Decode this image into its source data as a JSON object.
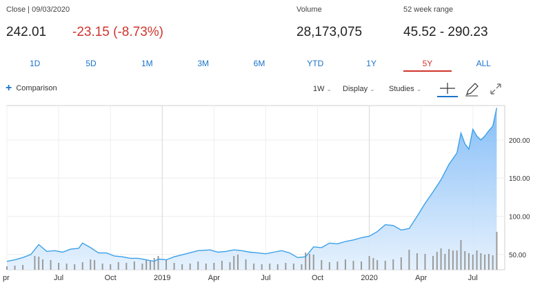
{
  "quote": {
    "close_label": "Close | 09/03/2020",
    "close_value": "242.01",
    "change": "-23.15 (-8.73%)",
    "volume_label": "Volume",
    "volume_value": "28,173,075",
    "range_label": "52 week range",
    "range_value": "45.52 - 290.23"
  },
  "ranges": [
    "1D",
    "5D",
    "1M",
    "3M",
    "6M",
    "YTD",
    "1Y",
    "5Y",
    "ALL"
  ],
  "active_range": "5Y",
  "toolbar": {
    "comparison_label": "Comparison",
    "interval_label": "1W",
    "display_label": "Display",
    "studies_label": "Studies",
    "icons": [
      "plus-icon",
      "crosshair-icon",
      "draw-pencil-icon",
      "expand-icon"
    ]
  },
  "colors": {
    "accent": "#1a73c9",
    "negative": "#d0342c",
    "line": "#3aa0e8",
    "fill": "#a9d2fb",
    "volume": "#9a9a9a"
  },
  "chart_data": {
    "type": "area",
    "ylim": [
      30,
      245
    ],
    "y_ticks": [
      "50.00",
      "100.00",
      "150.00",
      "200.00"
    ],
    "y_tick_values": [
      50,
      100,
      150,
      200
    ],
    "x_ticks": [
      {
        "label": "pr",
        "pos": 0
      },
      {
        "label": "Jul",
        "pos": 13
      },
      {
        "label": "Oct",
        "pos": 26
      },
      {
        "label": "2019",
        "pos": 39
      },
      {
        "label": "Apr",
        "pos": 52
      },
      {
        "label": "Jul",
        "pos": 65
      },
      {
        "label": "Oct",
        "pos": 78
      },
      {
        "label": "2020",
        "pos": 91
      },
      {
        "label": "Apr",
        "pos": 104
      },
      {
        "label": "Jul",
        "pos": 117
      }
    ],
    "x_count": 126,
    "grid": true,
    "key_points": [
      [
        0,
        41
      ],
      [
        2,
        43
      ],
      [
        4,
        46
      ],
      [
        6,
        50
      ],
      [
        8,
        63
      ],
      [
        10,
        54
      ],
      [
        12,
        55
      ],
      [
        14,
        53
      ],
      [
        16,
        57
      ],
      [
        18,
        58
      ],
      [
        19,
        65
      ],
      [
        21,
        59
      ],
      [
        23,
        52
      ],
      [
        25,
        52
      ],
      [
        27,
        48
      ],
      [
        29,
        47
      ],
      [
        31,
        45
      ],
      [
        33,
        45
      ],
      [
        35,
        43
      ],
      [
        37,
        41
      ],
      [
        38,
        44
      ],
      [
        40,
        43
      ],
      [
        42,
        47
      ],
      [
        45,
        51
      ],
      [
        48,
        55
      ],
      [
        51,
        56
      ],
      [
        53,
        53
      ],
      [
        55,
        54
      ],
      [
        57,
        56
      ],
      [
        59,
        55
      ],
      [
        61,
        53
      ],
      [
        63,
        52
      ],
      [
        65,
        51
      ],
      [
        67,
        53
      ],
      [
        69,
        55
      ],
      [
        71,
        52
      ],
      [
        73,
        46
      ],
      [
        75,
        47
      ],
      [
        77,
        60
      ],
      [
        79,
        59
      ],
      [
        81,
        65
      ],
      [
        83,
        64
      ],
      [
        85,
        67
      ],
      [
        87,
        69
      ],
      [
        89,
        72
      ],
      [
        91,
        74
      ],
      [
        93,
        80
      ],
      [
        95,
        89
      ],
      [
        97,
        88
      ],
      [
        99,
        82
      ],
      [
        101,
        84
      ],
      [
        103,
        100
      ],
      [
        105,
        117
      ],
      [
        107,
        132
      ],
      [
        109,
        148
      ],
      [
        111,
        168
      ],
      [
        113,
        183
      ],
      [
        114,
        209
      ],
      [
        115,
        195
      ],
      [
        116,
        188
      ],
      [
        117,
        214
      ],
      [
        118,
        205
      ],
      [
        119,
        200
      ],
      [
        120,
        205
      ],
      [
        121,
        212
      ],
      [
        122,
        218
      ],
      [
        123,
        242
      ]
    ],
    "volume_bars": [
      [
        0,
        10
      ],
      [
        2,
        12
      ],
      [
        4,
        14
      ],
      [
        7,
        40
      ],
      [
        8,
        38
      ],
      [
        9,
        30
      ],
      [
        11,
        28
      ],
      [
        13,
        20
      ],
      [
        15,
        18
      ],
      [
        17,
        16
      ],
      [
        19,
        22
      ],
      [
        21,
        30
      ],
      [
        22,
        28
      ],
      [
        24,
        18
      ],
      [
        26,
        16
      ],
      [
        28,
        22
      ],
      [
        30,
        20
      ],
      [
        32,
        24
      ],
      [
        34,
        18
      ],
      [
        35,
        30
      ],
      [
        36,
        26
      ],
      [
        37,
        34
      ],
      [
        38,
        40
      ],
      [
        40,
        30
      ],
      [
        42,
        20
      ],
      [
        44,
        16
      ],
      [
        46,
        18
      ],
      [
        48,
        24
      ],
      [
        50,
        18
      ],
      [
        52,
        20
      ],
      [
        54,
        26
      ],
      [
        56,
        22
      ],
      [
        57,
        40
      ],
      [
        58,
        44
      ],
      [
        60,
        30
      ],
      [
        62,
        18
      ],
      [
        64,
        16
      ],
      [
        66,
        18
      ],
      [
        68,
        16
      ],
      [
        70,
        20
      ],
      [
        72,
        18
      ],
      [
        74,
        16
      ],
      [
        75,
        50
      ],
      [
        76,
        46
      ],
      [
        77,
        44
      ],
      [
        79,
        28
      ],
      [
        81,
        22
      ],
      [
        83,
        24
      ],
      [
        85,
        30
      ],
      [
        87,
        26
      ],
      [
        89,
        24
      ],
      [
        91,
        40
      ],
      [
        92,
        34
      ],
      [
        93,
        28
      ],
      [
        95,
        26
      ],
      [
        97,
        30
      ],
      [
        99,
        36
      ],
      [
        101,
        58
      ],
      [
        103,
        48
      ],
      [
        105,
        46
      ],
      [
        107,
        40
      ],
      [
        108,
        52
      ],
      [
        109,
        62
      ],
      [
        110,
        46
      ],
      [
        111,
        60
      ],
      [
        112,
        56
      ],
      [
        113,
        56
      ],
      [
        114,
        86
      ],
      [
        115,
        54
      ],
      [
        116,
        48
      ],
      [
        117,
        44
      ],
      [
        118,
        56
      ],
      [
        119,
        48
      ],
      [
        120,
        44
      ],
      [
        121,
        46
      ],
      [
        122,
        42
      ],
      [
        123,
        110
      ]
    ]
  }
}
